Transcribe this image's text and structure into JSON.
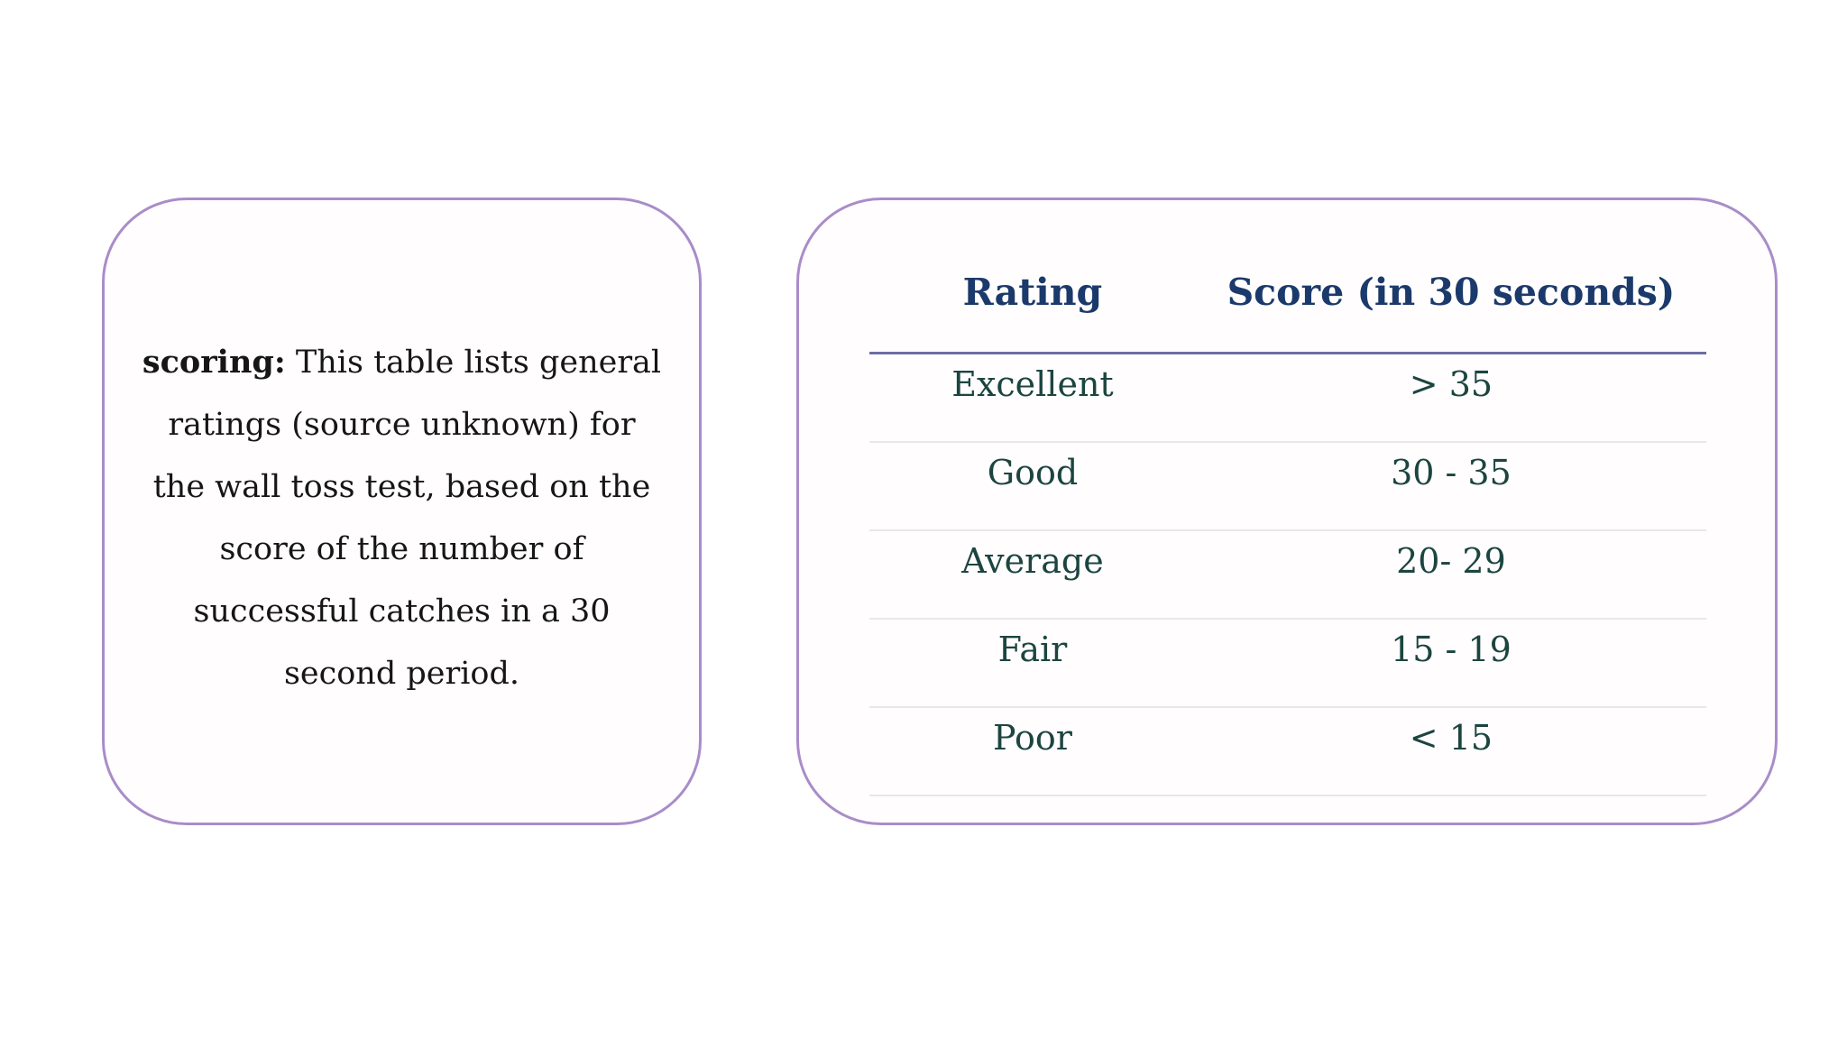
{
  "description_card": {
    "lead": "scoring:",
    "line1_rest": " This table lists general",
    "lines": [
      "ratings (source unknown) for",
      "the wall toss test, based on the",
      "score of the number of",
      "successful catches in a 30",
      "second period."
    ]
  },
  "score_table": {
    "headers": [
      "Rating",
      "Score (in 30 seconds)"
    ],
    "rows": [
      {
        "rating": "Excellent",
        "score": "> 35"
      },
      {
        "rating": "Good",
        "score": "30 - 35"
      },
      {
        "rating": "Average",
        "score": "20- 29"
      },
      {
        "rating": "Fair",
        "score": "15 - 19"
      },
      {
        "rating": "Poor",
        "score": "< 15"
      }
    ]
  },
  "colors": {
    "card_border": "#a98cc8",
    "header_text": "#1b3a6b",
    "row_text": "#1c4540",
    "header_divider": "#6c6fa4",
    "row_divider": "#e9e7e7",
    "body_text": "#161616",
    "page_bg": "#ffffff"
  }
}
